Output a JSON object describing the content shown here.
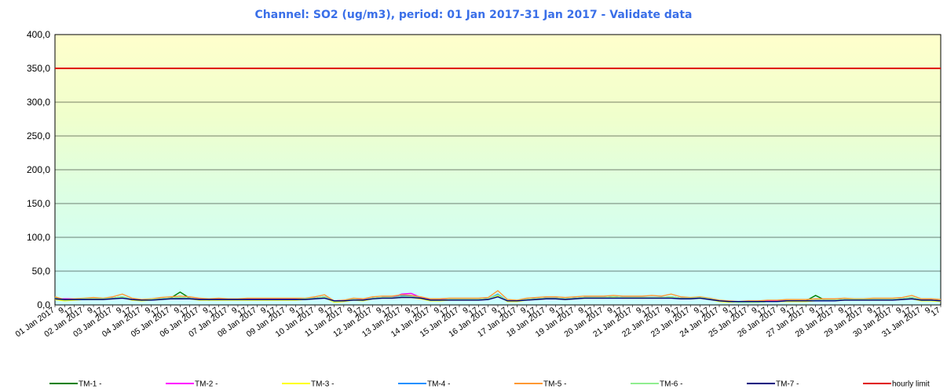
{
  "chart_data": {
    "type": "line",
    "title": "Channel: SO2 (ug/m3), period: 01 Jan 2017-31 Jan 2017 - Validate data",
    "categories": [
      "01 Jan 2017",
      "9",
      "17",
      "02 Jan 2017",
      "9",
      "17",
      "03 Jan 2017",
      "9",
      "17",
      "04 Jan 2017",
      "9",
      "17",
      "05 Jan 2017",
      "9",
      "17",
      "06 Jan 2017",
      "9",
      "17",
      "07 Jan 2017",
      "9",
      "17",
      "08 Jan 2017",
      "9",
      "17",
      "09 Jan 2017",
      "9",
      "17",
      "10 Jan 2017",
      "9",
      "17",
      "11 Jan 2017",
      "9",
      "17",
      "12 Jan 2017",
      "9",
      "17",
      "13 Jan 2017",
      "9",
      "17",
      "14 Jan 2017",
      "9",
      "17",
      "15 Jan 2017",
      "9",
      "17",
      "16 Jan 2017",
      "9",
      "17",
      "17 Jan 2017",
      "9",
      "17",
      "18 Jan 2017",
      "9",
      "17",
      "19 Jan 2017",
      "9",
      "17",
      "20 Jan 2017",
      "9",
      "17",
      "21 Jan 2017",
      "9",
      "17",
      "22 Jan 2017",
      "9",
      "17",
      "23 Jan 2017",
      "9",
      "17",
      "24 Jan 2017",
      "9",
      "17",
      "25 Jan 2017",
      "9",
      "17",
      "26 Jan 2017",
      "9",
      "17",
      "27 Jan 2017",
      "9",
      "17",
      "28 Jan 2017",
      "9",
      "17",
      "29 Jan 2017",
      "9",
      "17",
      "30 Jan 2017",
      "9",
      "17",
      "31 Jan 2017",
      "9",
      "17"
    ],
    "series": [
      {
        "name": "TM-1 -",
        "color": "#008000",
        "values": [
          11,
          7,
          8,
          9,
          9,
          9,
          10,
          12,
          8,
          7,
          8,
          9,
          10,
          19,
          10,
          8,
          7,
          8,
          8,
          8,
          8,
          8,
          8,
          8,
          8,
          8,
          9,
          10,
          12,
          5,
          6,
          8,
          7,
          10,
          11,
          11,
          13,
          12,
          10,
          7,
          7,
          8,
          8,
          8,
          8,
          9,
          15,
          6,
          6,
          8,
          9,
          10,
          10,
          9,
          10,
          11,
          11,
          11,
          12,
          11,
          11,
          11,
          11,
          11,
          12,
          10,
          10,
          11,
          9,
          6,
          5,
          4,
          4,
          4,
          5,
          5,
          6,
          6,
          6,
          14,
          7,
          7,
          8,
          8,
          8,
          8,
          8,
          8,
          9,
          11,
          7,
          7,
          6
        ]
      },
      {
        "name": "TM-2 -",
        "color": "#ff00ff",
        "values": [
          9,
          9,
          9,
          8,
          9,
          9,
          10,
          11,
          8,
          7,
          8,
          9,
          9,
          10,
          10,
          9,
          8,
          9,
          9,
          9,
          9,
          9,
          9,
          9,
          9,
          9,
          9,
          10,
          12,
          6,
          7,
          8,
          8,
          10,
          11,
          11,
          16,
          17,
          11,
          8,
          8,
          8,
          8,
          8,
          8,
          9,
          15,
          6,
          6,
          8,
          9,
          10,
          10,
          9,
          10,
          11,
          11,
          11,
          12,
          11,
          11,
          11,
          11,
          11,
          12,
          10,
          10,
          11,
          9,
          6,
          5,
          5,
          5,
          5,
          6,
          6,
          6,
          6,
          6,
          7,
          7,
          7,
          8,
          8,
          8,
          8,
          8,
          8,
          9,
          10,
          7,
          7,
          6
        ]
      },
      {
        "name": "TM-3 -",
        "color": "#ffff00",
        "values": [
          8,
          6,
          7,
          8,
          8,
          8,
          9,
          11,
          7,
          6,
          7,
          8,
          9,
          10,
          9,
          7,
          7,
          7,
          7,
          7,
          7,
          7,
          7,
          7,
          7,
          7,
          8,
          9,
          11,
          4,
          5,
          7,
          6,
          9,
          10,
          10,
          11,
          11,
          9,
          6,
          6,
          7,
          7,
          7,
          7,
          8,
          14,
          5,
          5,
          7,
          8,
          9,
          9,
          8,
          9,
          10,
          10,
          10,
          11,
          10,
          10,
          10,
          10,
          10,
          11,
          9,
          9,
          10,
          8,
          5,
          4,
          4,
          4,
          4,
          5,
          5,
          5,
          5,
          5,
          6,
          6,
          6,
          7,
          7,
          7,
          7,
          7,
          7,
          8,
          9,
          6,
          6,
          5
        ]
      },
      {
        "name": "TM-4 -",
        "color": "#1e90ff",
        "values": [
          9,
          8,
          8,
          8,
          9,
          9,
          10,
          12,
          8,
          7,
          8,
          9,
          10,
          11,
          10,
          8,
          8,
          8,
          8,
          8,
          8,
          8,
          8,
          8,
          8,
          8,
          9,
          10,
          12,
          6,
          6,
          8,
          7,
          10,
          11,
          11,
          13,
          13,
          10,
          7,
          7,
          8,
          8,
          8,
          8,
          9,
          16,
          6,
          6,
          8,
          9,
          10,
          10,
          9,
          10,
          11,
          11,
          11,
          12,
          11,
          11,
          11,
          11,
          11,
          12,
          10,
          10,
          11,
          9,
          6,
          5,
          4,
          4,
          5,
          5,
          5,
          6,
          6,
          6,
          7,
          7,
          7,
          8,
          8,
          8,
          8,
          8,
          8,
          9,
          11,
          7,
          7,
          6
        ]
      },
      {
        "name": "TM-5 -",
        "color": "#ff9933",
        "values": [
          12,
          8,
          9,
          10,
          11,
          10,
          12,
          16,
          10,
          8,
          9,
          11,
          12,
          13,
          12,
          10,
          9,
          10,
          9,
          9,
          10,
          10,
          10,
          10,
          10,
          10,
          10,
          12,
          15,
          6,
          7,
          10,
          9,
          12,
          13,
          13,
          15,
          14,
          12,
          9,
          9,
          10,
          10,
          10,
          10,
          11,
          21,
          8,
          7,
          10,
          11,
          12,
          12,
          11,
          12,
          13,
          13,
          13,
          14,
          13,
          13,
          13,
          14,
          13,
          16,
          12,
          11,
          12,
          10,
          7,
          6,
          5,
          6,
          6,
          7,
          7,
          8,
          8,
          8,
          9,
          9,
          9,
          10,
          9,
          9,
          10,
          10,
          10,
          11,
          14,
          9,
          9,
          8
        ]
      },
      {
        "name": "TM-6 -",
        "color": "#90ee90",
        "values": [
          10,
          7,
          8,
          9,
          9,
          9,
          10,
          12,
          8,
          7,
          8,
          9,
          10,
          11,
          10,
          8,
          8,
          8,
          8,
          8,
          8,
          8,
          8,
          8,
          8,
          8,
          9,
          10,
          12,
          5,
          6,
          8,
          7,
          10,
          11,
          11,
          12,
          12,
          10,
          7,
          7,
          8,
          8,
          8,
          8,
          9,
          15,
          6,
          6,
          8,
          9,
          10,
          10,
          9,
          10,
          11,
          11,
          11,
          12,
          11,
          11,
          11,
          11,
          11,
          12,
          10,
          10,
          11,
          9,
          6,
          5,
          4,
          4,
          4,
          5,
          5,
          6,
          6,
          6,
          7,
          7,
          7,
          8,
          8,
          8,
          8,
          8,
          8,
          9,
          11,
          7,
          7,
          6
        ]
      },
      {
        "name": "TM-7 -",
        "color": "#000080",
        "values": [
          9,
          8,
          8,
          8,
          8,
          8,
          9,
          10,
          8,
          7,
          7,
          8,
          9,
          9,
          9,
          8,
          8,
          8,
          8,
          8,
          8,
          8,
          8,
          8,
          8,
          8,
          8,
          9,
          10,
          6,
          6,
          7,
          7,
          9,
          10,
          10,
          11,
          11,
          10,
          7,
          7,
          7,
          7,
          7,
          7,
          8,
          12,
          6,
          6,
          7,
          8,
          9,
          9,
          8,
          9,
          10,
          10,
          10,
          10,
          10,
          10,
          10,
          10,
          10,
          10,
          9,
          9,
          10,
          8,
          6,
          5,
          5,
          5,
          5,
          5,
          5,
          6,
          6,
          6,
          6,
          6,
          6,
          7,
          7,
          7,
          7,
          7,
          7,
          8,
          9,
          7,
          7,
          6
        ]
      }
    ],
    "limit": {
      "name": "hourly limit",
      "value": 350,
      "color": "#e00000"
    },
    "ylim": [
      0,
      400
    ],
    "yticks": [
      {
        "value": 0,
        "label": "0,0"
      },
      {
        "value": 50,
        "label": "50,0"
      },
      {
        "value": 100,
        "label": "100,0"
      },
      {
        "value": 150,
        "label": "150,0"
      },
      {
        "value": 200,
        "label": "200,0"
      },
      {
        "value": 250,
        "label": "250,0"
      },
      {
        "value": 300,
        "label": "300,0"
      },
      {
        "value": 350,
        "label": "350,0"
      },
      {
        "value": 400,
        "label": "400,0"
      }
    ],
    "grid": true
  }
}
